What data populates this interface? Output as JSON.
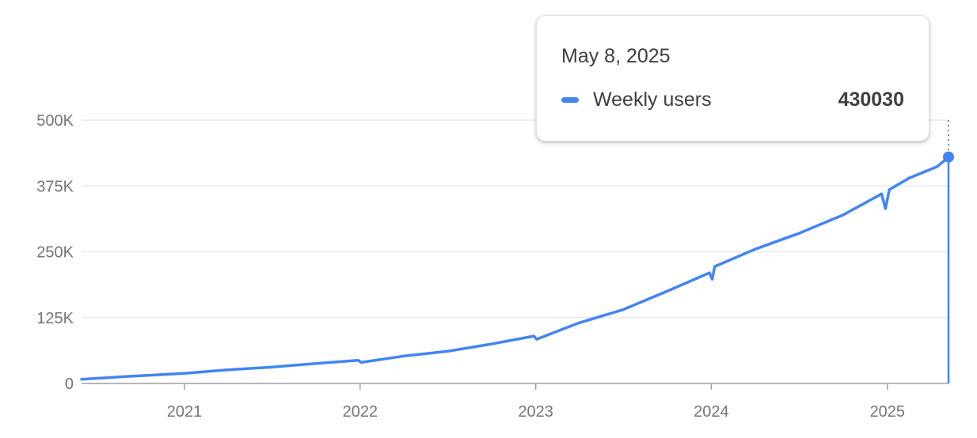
{
  "colors": {
    "series": "#4285f4",
    "grid": "#e8eaed",
    "axis": "#9aa0a6",
    "text": "#70757a"
  },
  "tooltip": {
    "date": "May 8, 2025",
    "series_name": "Weekly users",
    "value": "430030"
  },
  "chart_data": {
    "type": "line",
    "title": "",
    "xlabel": "",
    "ylabel": "",
    "ylim": [
      0,
      500000
    ],
    "y_ticks": [
      0,
      125000,
      250000,
      375000,
      500000
    ],
    "y_tick_labels": [
      "0",
      "125K",
      "250K",
      "375K",
      "500K"
    ],
    "x_ticks": [
      "2021-01-01",
      "2022-01-01",
      "2023-01-01",
      "2024-01-01",
      "2025-01-01"
    ],
    "x_tick_labels": [
      "2021",
      "2022",
      "2023",
      "2024",
      "2025"
    ],
    "xlim": [
      "2020-06-01",
      "2025-05-08"
    ],
    "grid": true,
    "series": [
      {
        "name": "Weekly users",
        "x": [
          "2020-06-01",
          "2020-09-01",
          "2021-01-01",
          "2021-04-01",
          "2021-07-01",
          "2021-10-01",
          "2021-12-28",
          "2022-01-03",
          "2022-04-01",
          "2022-07-01",
          "2022-10-01",
          "2022-12-28",
          "2023-01-03",
          "2023-04-01",
          "2023-07-01",
          "2023-10-01",
          "2023-12-28",
          "2024-01-03",
          "2024-01-08",
          "2024-04-01",
          "2024-07-01",
          "2024-10-01",
          "2024-12-20",
          "2024-12-28",
          "2025-01-05",
          "2025-02-15",
          "2025-04-15",
          "2025-05-08"
        ],
        "values": [
          8000,
          13000,
          19000,
          26000,
          31000,
          38000,
          44000,
          40000,
          52000,
          61000,
          75000,
          90000,
          84000,
          115000,
          140000,
          175000,
          210000,
          198000,
          222000,
          255000,
          285000,
          320000,
          360000,
          332000,
          368000,
          390000,
          412000,
          430030
        ]
      }
    ],
    "highlight": {
      "x": "2025-05-08",
      "value": 430030
    }
  }
}
